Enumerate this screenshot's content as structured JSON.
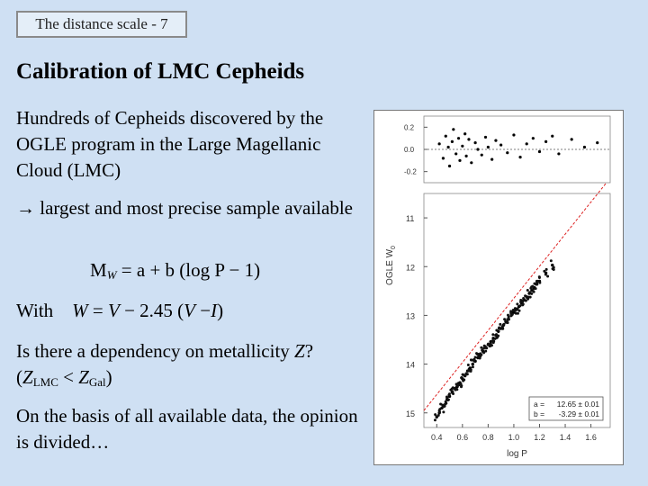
{
  "slide_tag": "The distance scale - 7",
  "title": "Calibration of LMC Cepheids",
  "para1": "Hundreds of Cepheids discovered by the OGLE program in the Large Magellanic Cloud (LMC)",
  "para2": "→ largest and most precise sample available",
  "equation1": {
    "lhs": "M",
    "sub": "W",
    "rhs": " = a + b (log P − 1)"
  },
  "equation2": {
    "with": "With",
    "W": "W",
    "mid1": " = ",
    "V": "V",
    "mid2": " − 2.45 (",
    "V2": "V",
    "mid3": " −",
    "I": "I",
    "end": ")"
  },
  "para3": {
    "text": "Is there a dependency on metallicity ",
    "Z": "Z",
    "q": "?",
    "open": "(",
    "Z1": "Z",
    "sub1": "LMC",
    "lt": " < ",
    "Z2": "Z",
    "sub2": "Gal",
    "close": ")"
  },
  "para4": "On the basis of all available data, the opinion is divided…",
  "chart_data": [
    {
      "type": "scatter",
      "panel": "residuals",
      "yticks": [
        "0.2",
        "0.0",
        "-0.2"
      ],
      "ylim": [
        -0.3,
        0.3
      ],
      "xlim": [
        0.3,
        1.75
      ],
      "reference_line_y": 0.0,
      "x": [
        0.42,
        0.45,
        0.47,
        0.49,
        0.5,
        0.52,
        0.53,
        0.55,
        0.57,
        0.58,
        0.6,
        0.62,
        0.63,
        0.65,
        0.67,
        0.7,
        0.72,
        0.75,
        0.78,
        0.8,
        0.83,
        0.86,
        0.9,
        0.95,
        1.0,
        1.05,
        1.1,
        1.15,
        1.2,
        1.25,
        1.3,
        1.35,
        1.45,
        1.55,
        1.65
      ],
      "y": [
        0.05,
        -0.08,
        0.12,
        0.02,
        -0.15,
        0.07,
        0.18,
        -0.04,
        0.1,
        -0.1,
        0.03,
        0.14,
        -0.06,
        0.09,
        -0.12,
        0.06,
        0.0,
        -0.05,
        0.11,
        0.02,
        -0.09,
        0.08,
        0.04,
        -0.03,
        0.13,
        -0.07,
        0.05,
        0.1,
        -0.02,
        0.07,
        0.12,
        -0.04,
        0.09,
        0.02,
        0.06
      ]
    },
    {
      "type": "scatter",
      "panel": "period-luminosity",
      "xlabel": "log P",
      "ylabel": "OGLE W",
      "ylabel_sub": "0",
      "xticks": [
        "0.4",
        "0.6",
        "0.8",
        "1.0",
        "1.2",
        "1.4",
        "1.6"
      ],
      "yticks": [
        "11",
        "12",
        "13",
        "14",
        "15"
      ],
      "xlim": [
        0.3,
        1.75
      ],
      "ylim": [
        15.3,
        10.5
      ],
      "fit": {
        "a": 12.65,
        "b": -3.29
      },
      "fit_box": {
        "a_label": "a =",
        "a_value": "12.65 ± 0.01",
        "b_label": "b =",
        "b_value": "-3.29 ± 0.01"
      },
      "x": [
        0.4,
        0.42,
        0.44,
        0.46,
        0.48,
        0.5,
        0.52,
        0.54,
        0.56,
        0.58,
        0.6,
        0.62,
        0.64,
        0.66,
        0.68,
        0.7,
        0.72,
        0.74,
        0.76,
        0.78,
        0.8,
        0.82,
        0.84,
        0.86,
        0.88,
        0.9,
        0.92,
        0.94,
        0.96,
        0.98,
        1.0,
        1.02,
        1.04,
        1.06,
        1.08,
        1.1,
        1.12,
        1.14,
        1.16,
        1.18,
        1.2,
        1.25,
        1.3
      ],
      "y": [
        15.08,
        15.0,
        14.9,
        14.86,
        14.72,
        14.66,
        14.58,
        14.5,
        14.46,
        14.38,
        14.3,
        14.24,
        14.14,
        14.08,
        14.0,
        13.94,
        13.87,
        13.8,
        13.74,
        13.66,
        13.6,
        13.54,
        13.47,
        13.41,
        13.33,
        13.27,
        13.2,
        13.14,
        13.08,
        13.0,
        12.94,
        12.88,
        12.82,
        12.75,
        12.68,
        12.62,
        12.55,
        12.49,
        12.43,
        12.36,
        12.3,
        12.13,
        11.97
      ]
    }
  ]
}
